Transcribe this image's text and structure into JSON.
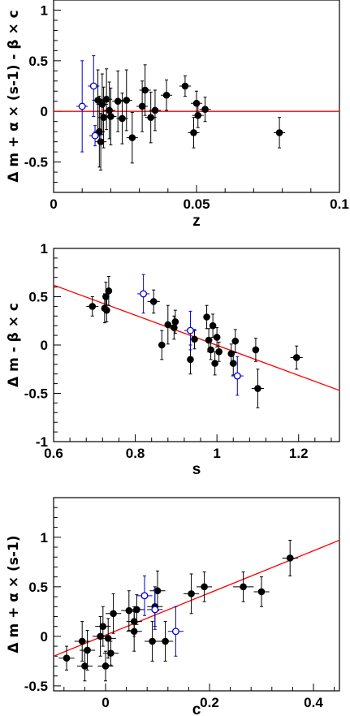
{
  "chart_data": [
    {
      "type": "scatter",
      "xlabel": "z",
      "ylabel": "Δ m + α × (s-1) - β × c",
      "xlim": [
        0,
        0.1
      ],
      "ylim": [
        -0.8,
        1.1
      ],
      "xticks": [
        "0",
        "0.05",
        "0.1"
      ],
      "yticks": [
        "-0.5",
        "0",
        "0.5",
        "1"
      ],
      "fit_line": {
        "x": [
          0,
          0.1
        ],
        "y": [
          0,
          0
        ],
        "color": "#ff0000"
      },
      "series": [
        {
          "color": "#000000",
          "marker": "filled-circle",
          "points": [
            {
              "x": 0.0155,
              "y": 0.11,
              "xerr": 0.002,
              "yerr": 0.3
            },
            {
              "x": 0.016,
              "y": -0.2,
              "xerr": 0.002,
              "yerr": 0.35
            },
            {
              "x": 0.0165,
              "y": -0.3,
              "xerr": 0.002,
              "yerr": 0.28
            },
            {
              "x": 0.017,
              "y": 0.07,
              "xerr": 0.002,
              "yerr": 0.3
            },
            {
              "x": 0.0175,
              "y": -0.06,
              "xerr": 0.002,
              "yerr": 0.3
            },
            {
              "x": 0.0185,
              "y": 0.12,
              "xerr": 0.002,
              "yerr": 0.3
            },
            {
              "x": 0.0195,
              "y": 0.01,
              "xerr": 0.002,
              "yerr": 0.28
            },
            {
              "x": 0.02,
              "y": -0.05,
              "xerr": 0.002,
              "yerr": 0.28
            },
            {
              "x": 0.0225,
              "y": 0.1,
              "xerr": 0.002,
              "yerr": 0.3
            },
            {
              "x": 0.024,
              "y": -0.07,
              "xerr": 0.002,
              "yerr": 0.25
            },
            {
              "x": 0.0255,
              "y": 0.11,
              "xerr": 0.002,
              "yerr": 0.3
            },
            {
              "x": 0.0275,
              "y": -0.26,
              "xerr": 0.002,
              "yerr": 0.25
            },
            {
              "x": 0.031,
              "y": 0.05,
              "xerr": 0.002,
              "yerr": 0.25
            },
            {
              "x": 0.032,
              "y": 0.21,
              "xerr": 0.002,
              "yerr": 0.25
            },
            {
              "x": 0.034,
              "y": -0.06,
              "xerr": 0.002,
              "yerr": 0.25
            },
            {
              "x": 0.0355,
              "y": 0.01,
              "xerr": 0.002,
              "yerr": 0.2
            },
            {
              "x": 0.0395,
              "y": 0.16,
              "xerr": 0.002,
              "yerr": 0.15
            },
            {
              "x": 0.046,
              "y": 0.25,
              "xerr": 0.002,
              "yerr": 0.1
            },
            {
              "x": 0.049,
              "y": -0.21,
              "xerr": 0.002,
              "yerr": 0.15
            },
            {
              "x": 0.05,
              "y": 0.08,
              "xerr": 0.002,
              "yerr": 0.12
            },
            {
              "x": 0.0505,
              "y": -0.04,
              "xerr": 0.002,
              "yerr": 0.12
            },
            {
              "x": 0.053,
              "y": 0.02,
              "xerr": 0.002,
              "yerr": 0.12
            },
            {
              "x": 0.079,
              "y": -0.21,
              "xerr": 0.002,
              "yerr": 0.15
            }
          ]
        },
        {
          "color": "#0000cc",
          "marker": "open-circle",
          "points": [
            {
              "x": 0.01,
              "y": 0.05,
              "xerr": 0.002,
              "yerr": 0.45
            },
            {
              "x": 0.014,
              "y": 0.25,
              "xerr": 0.002,
              "yerr": 0.3
            },
            {
              "x": 0.0145,
              "y": -0.24,
              "xerr": 0.002,
              "yerr": 0.1
            }
          ]
        }
      ]
    },
    {
      "type": "scatter",
      "xlabel": "s",
      "ylabel": "Δ m - β × c",
      "xlim": [
        0.6,
        1.3
      ],
      "ylim": [
        -1,
        1
      ],
      "xticks": [
        "0.6",
        "0.8",
        "1",
        "1.2"
      ],
      "yticks": [
        "-1",
        "-0.5",
        "0",
        "0.5",
        "1"
      ],
      "fit_line": {
        "x": [
          0.6,
          1.3
        ],
        "y": [
          0.62,
          -0.47
        ],
        "color": "#ff0000"
      },
      "series": [
        {
          "color": "#000000",
          "marker": "filled-circle",
          "points": [
            {
              "x": 0.695,
              "y": 0.4,
              "xerr": 0.015,
              "yerr": 0.1
            },
            {
              "x": 0.725,
              "y": 0.38,
              "xerr": 0.008,
              "yerr": 0.15
            },
            {
              "x": 0.728,
              "y": 0.5,
              "xerr": 0.008,
              "yerr": 0.15
            },
            {
              "x": 0.73,
              "y": 0.36,
              "xerr": 0.008,
              "yerr": 0.12
            },
            {
              "x": 0.735,
              "y": 0.56,
              "xerr": 0.008,
              "yerr": 0.15
            },
            {
              "x": 0.845,
              "y": 0.45,
              "xerr": 0.015,
              "yerr": 0.12
            },
            {
              "x": 0.865,
              "y": 0.0,
              "xerr": 0.008,
              "yerr": 0.15
            },
            {
              "x": 0.88,
              "y": 0.21,
              "xerr": 0.008,
              "yerr": 0.2
            },
            {
              "x": 0.895,
              "y": 0.18,
              "xerr": 0.008,
              "yerr": 0.12
            },
            {
              "x": 0.898,
              "y": 0.24,
              "xerr": 0.008,
              "yerr": 0.12
            },
            {
              "x": 0.935,
              "y": -0.15,
              "xerr": 0.008,
              "yerr": 0.15
            },
            {
              "x": 0.945,
              "y": 0.06,
              "xerr": 0.008,
              "yerr": 0.1
            },
            {
              "x": 0.975,
              "y": 0.29,
              "xerr": 0.008,
              "yerr": 0.12
            },
            {
              "x": 0.98,
              "y": 0.05,
              "xerr": 0.008,
              "yerr": 0.12
            },
            {
              "x": 0.985,
              "y": -0.05,
              "xerr": 0.008,
              "yerr": 0.1
            },
            {
              "x": 0.99,
              "y": 0.2,
              "xerr": 0.008,
              "yerr": 0.12
            },
            {
              "x": 0.995,
              "y": -0.19,
              "xerr": 0.008,
              "yerr": 0.12
            },
            {
              "x": 1.0,
              "y": 0.08,
              "xerr": 0.008,
              "yerr": 0.1
            },
            {
              "x": 1.005,
              "y": -0.07,
              "xerr": 0.008,
              "yerr": 0.1
            },
            {
              "x": 1.035,
              "y": -0.09,
              "xerr": 0.008,
              "yerr": 0.1
            },
            {
              "x": 1.04,
              "y": -0.19,
              "xerr": 0.008,
              "yerr": 0.12
            },
            {
              "x": 1.045,
              "y": 0.04,
              "xerr": 0.008,
              "yerr": 0.12
            },
            {
              "x": 1.095,
              "y": -0.05,
              "xerr": 0.008,
              "yerr": 0.12
            },
            {
              "x": 1.1,
              "y": -0.45,
              "xerr": 0.015,
              "yerr": 0.2
            },
            {
              "x": 1.195,
              "y": -0.13,
              "xerr": 0.015,
              "yerr": 0.12
            }
          ]
        },
        {
          "color": "#0000cc",
          "marker": "open-circle",
          "points": [
            {
              "x": 0.82,
              "y": 0.53,
              "xerr": 0.015,
              "yerr": 0.2
            },
            {
              "x": 0.935,
              "y": 0.15,
              "xerr": 0.015,
              "yerr": 0.2
            },
            {
              "x": 1.05,
              "y": -0.32,
              "xerr": 0.015,
              "yerr": 0.2
            }
          ]
        }
      ]
    },
    {
      "type": "scatter",
      "xlabel": "c",
      "ylabel": "Δ m + α × (s-1)",
      "xlim": [
        -0.1,
        0.45
      ],
      "ylim": [
        -0.55,
        1.4
      ],
      "xticks": [
        "0",
        "0.2",
        "0.4"
      ],
      "yticks": [
        "-0.5",
        "0",
        "0.5",
        "1"
      ],
      "fit_line": {
        "x": [
          -0.1,
          0.45
        ],
        "y": [
          -0.2,
          0.97
        ],
        "color": "#ff0000"
      },
      "series": [
        {
          "color": "#000000",
          "marker": "filled-circle",
          "points": [
            {
              "x": -0.075,
              "y": -0.22,
              "xerr": 0.015,
              "yerr": 0.12
            },
            {
              "x": -0.045,
              "y": -0.05,
              "xerr": 0.015,
              "yerr": 0.2
            },
            {
              "x": -0.04,
              "y": -0.3,
              "xerr": 0.015,
              "yerr": 0.15
            },
            {
              "x": -0.035,
              "y": -0.14,
              "xerr": 0.015,
              "yerr": 0.2
            },
            {
              "x": -0.01,
              "y": 0.0,
              "xerr": 0.015,
              "yerr": 0.2
            },
            {
              "x": -0.005,
              "y": 0.1,
              "xerr": 0.015,
              "yerr": 0.2
            },
            {
              "x": 0.0,
              "y": -0.3,
              "xerr": 0.015,
              "yerr": 0.15
            },
            {
              "x": 0.005,
              "y": -0.02,
              "xerr": 0.015,
              "yerr": 0.2
            },
            {
              "x": 0.01,
              "y": -0.17,
              "xerr": 0.015,
              "yerr": 0.12
            },
            {
              "x": 0.015,
              "y": 0.23,
              "xerr": 0.015,
              "yerr": 0.2
            },
            {
              "x": 0.045,
              "y": 0.26,
              "xerr": 0.015,
              "yerr": 0.2
            },
            {
              "x": 0.055,
              "y": 0.05,
              "xerr": 0.015,
              "yerr": 0.2
            },
            {
              "x": 0.055,
              "y": 0.15,
              "xerr": 0.015,
              "yerr": 0.15
            },
            {
              "x": 0.06,
              "y": 0.27,
              "xerr": 0.015,
              "yerr": 0.15
            },
            {
              "x": 0.09,
              "y": -0.05,
              "xerr": 0.015,
              "yerr": 0.2
            },
            {
              "x": 0.095,
              "y": 0.3,
              "xerr": 0.015,
              "yerr": 0.2
            },
            {
              "x": 0.1,
              "y": 0.46,
              "xerr": 0.015,
              "yerr": 0.2
            },
            {
              "x": 0.115,
              "y": -0.05,
              "xerr": 0.015,
              "yerr": 0.2
            },
            {
              "x": 0.165,
              "y": 0.43,
              "xerr": 0.015,
              "yerr": 0.2
            },
            {
              "x": 0.19,
              "y": 0.5,
              "xerr": 0.015,
              "yerr": 0.15
            },
            {
              "x": 0.265,
              "y": 0.5,
              "xerr": 0.02,
              "yerr": 0.15
            },
            {
              "x": 0.3,
              "y": 0.45,
              "xerr": 0.015,
              "yerr": 0.15
            },
            {
              "x": 0.355,
              "y": 0.79,
              "xerr": 0.015,
              "yerr": 0.18
            }
          ]
        },
        {
          "color": "#0000cc",
          "marker": "open-circle",
          "points": [
            {
              "x": 0.075,
              "y": 0.41,
              "xerr": 0.015,
              "yerr": 0.2
            },
            {
              "x": 0.095,
              "y": 0.27,
              "xerr": 0.015,
              "yerr": 0.2
            },
            {
              "x": 0.135,
              "y": 0.05,
              "xerr": 0.015,
              "yerr": 0.25
            }
          ]
        }
      ]
    }
  ]
}
